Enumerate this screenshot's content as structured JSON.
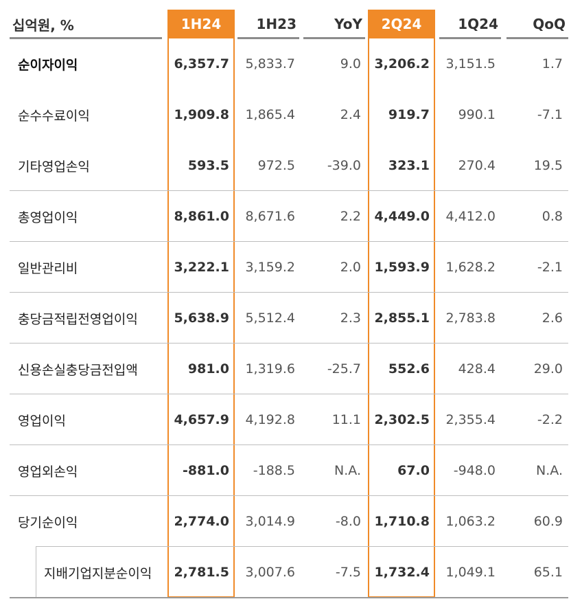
{
  "header": {
    "unit": "십억원, %",
    "cols": [
      "1H24",
      "1H23",
      "YoY",
      "2Q24",
      "1Q24",
      "QoQ"
    ]
  },
  "rows": [
    {
      "label": "순이자이익",
      "v": [
        "6,357.7",
        "5,833.7",
        "9.0",
        "3,206.2",
        "3,151.5",
        "1.7"
      ]
    },
    {
      "label": "순수수료이익",
      "v": [
        "1,909.8",
        "1,865.4",
        "2.4",
        "919.7",
        "990.1",
        "-7.1"
      ]
    },
    {
      "label": "기타영업손익",
      "v": [
        "593.5",
        "972.5",
        "-39.0",
        "323.1",
        "270.4",
        "19.5"
      ]
    },
    {
      "label": "총영업이익",
      "v": [
        "8,861.0",
        "8,671.6",
        "2.2",
        "4,449.0",
        "4,412.0",
        "0.8"
      ]
    },
    {
      "label": "일반관리비",
      "v": [
        "3,222.1",
        "3,159.2",
        "2.0",
        "1,593.9",
        "1,628.2",
        "-2.1"
      ]
    },
    {
      "label": "충당금적립전영업이익",
      "v": [
        "5,638.9",
        "5,512.4",
        "2.3",
        "2,855.1",
        "2,783.8",
        "2.6"
      ]
    },
    {
      "label": "신용손실충당금전입액",
      "v": [
        "981.0",
        "1,319.6",
        "-25.7",
        "552.6",
        "428.4",
        "29.0"
      ]
    },
    {
      "label": "영업이익",
      "v": [
        "4,657.9",
        "4,192.8",
        "11.1",
        "2,302.5",
        "2,355.4",
        "-2.2"
      ]
    },
    {
      "label": "영업외손익",
      "v": [
        "-881.0",
        "-188.5",
        "N.A.",
        "67.0",
        "-948.0",
        "N.A."
      ]
    },
    {
      "label": "당기순이익",
      "v": [
        "2,774.0",
        "3,014.9",
        "-8.0",
        "1,710.8",
        "1,063.2",
        "60.9"
      ]
    },
    {
      "label": "지배기업지분순이익",
      "v": [
        "2,781.5",
        "3,007.6",
        "-7.5",
        "1,732.4",
        "1,049.1",
        "65.1"
      ]
    }
  ],
  "colors": {
    "accent": "#f08a28",
    "text": "#333333",
    "rule": "#bdbdbd"
  }
}
